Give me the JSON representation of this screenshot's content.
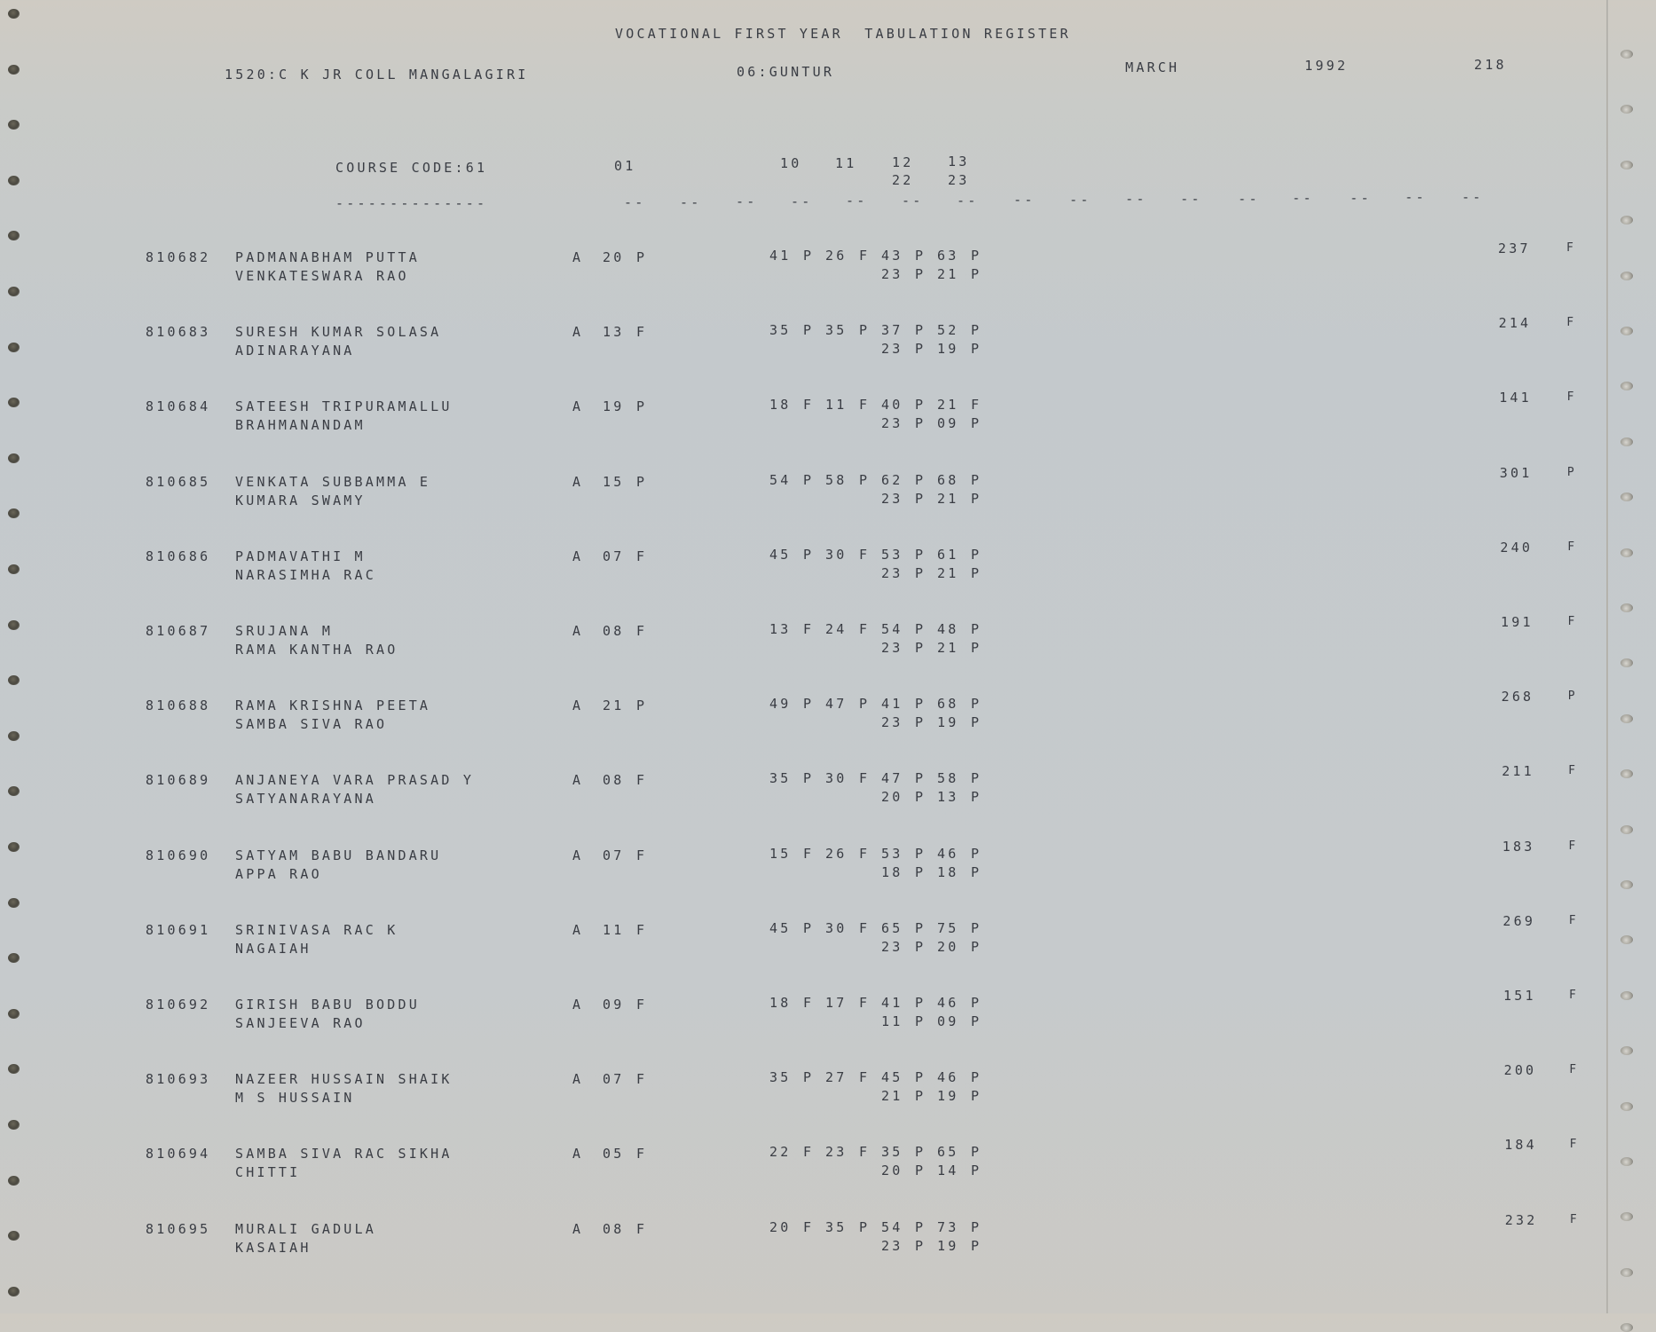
{
  "header": {
    "title": "VOCATIONAL FIRST YEAR  TABULATION REGISTER",
    "college": "1520:C K JR COLL MANGALAGIRI",
    "district": "06:GUNTUR",
    "month": "MARCH",
    "year": "1992",
    "page": "218"
  },
  "columns": {
    "course_code": "COURSE CODE:61",
    "course_underline": "--------------",
    "subjects_line1": [
      "01",
      "10",
      "11",
      "12",
      "13"
    ],
    "subjects_line2": [
      "22",
      "23"
    ],
    "dash_group": "--",
    "dash_group_count": 16
  },
  "rows": [
    {
      "id": "810682",
      "name1": "PADMANABHAM PUTTA",
      "name2": "VENKATESWARA RAO",
      "part": "A",
      "s01": [
        "20",
        "P"
      ],
      "s10": [
        "41",
        "P"
      ],
      "s11": [
        "26",
        "F"
      ],
      "s12": [
        "43",
        "P"
      ],
      "s13": [
        "63",
        "P"
      ],
      "s22": [
        "23",
        "P"
      ],
      "s23": [
        "21",
        "P"
      ],
      "total": "237",
      "result": "F"
    },
    {
      "id": "810683",
      "name1": "SURESH KUMAR SOLASA",
      "name2": "ADINARAYANA",
      "part": "A",
      "s01": [
        "13",
        "F"
      ],
      "s10": [
        "35",
        "P"
      ],
      "s11": [
        "35",
        "P"
      ],
      "s12": [
        "37",
        "P"
      ],
      "s13": [
        "52",
        "P"
      ],
      "s22": [
        "23",
        "P"
      ],
      "s23": [
        "19",
        "P"
      ],
      "total": "214",
      "result": "F"
    },
    {
      "id": "810684",
      "name1": "SATEESH TRIPURAMALLU",
      "name2": "BRAHMANANDAM",
      "part": "A",
      "s01": [
        "19",
        "P"
      ],
      "s10": [
        "18",
        "F"
      ],
      "s11": [
        "11",
        "F"
      ],
      "s12": [
        "40",
        "P"
      ],
      "s13": [
        "21",
        "F"
      ],
      "s22": [
        "23",
        "P"
      ],
      "s23": [
        "09",
        "P"
      ],
      "total": "141",
      "result": "F"
    },
    {
      "id": "810685",
      "name1": "VENKATA SUBBAMMA E",
      "name2": "KUMARA SWAMY",
      "part": "A",
      "s01": [
        "15",
        "P"
      ],
      "s10": [
        "54",
        "P"
      ],
      "s11": [
        "58",
        "P"
      ],
      "s12": [
        "62",
        "P"
      ],
      "s13": [
        "68",
        "P"
      ],
      "s22": [
        "23",
        "P"
      ],
      "s23": [
        "21",
        "P"
      ],
      "total": "301",
      "result": "P"
    },
    {
      "id": "810686",
      "name1": "PADMAVATHI M",
      "name2": "NARASIMHA RAC",
      "part": "A",
      "s01": [
        "07",
        "F"
      ],
      "s10": [
        "45",
        "P"
      ],
      "s11": [
        "30",
        "F"
      ],
      "s12": [
        "53",
        "P"
      ],
      "s13": [
        "61",
        "P"
      ],
      "s22": [
        "23",
        "P"
      ],
      "s23": [
        "21",
        "P"
      ],
      "total": "240",
      "result": "F"
    },
    {
      "id": "810687",
      "name1": "SRUJANA M",
      "name2": "RAMA KANTHA RAO",
      "part": "A",
      "s01": [
        "08",
        "F"
      ],
      "s10": [
        "13",
        "F"
      ],
      "s11": [
        "24",
        "F"
      ],
      "s12": [
        "54",
        "P"
      ],
      "s13": [
        "48",
        "P"
      ],
      "s22": [
        "23",
        "P"
      ],
      "s23": [
        "21",
        "P"
      ],
      "total": "191",
      "result": "F"
    },
    {
      "id": "810688",
      "name1": "RAMA KRISHNA PEETA",
      "name2": "SAMBA SIVA RAO",
      "part": "A",
      "s01": [
        "21",
        "P"
      ],
      "s10": [
        "49",
        "P"
      ],
      "s11": [
        "47",
        "P"
      ],
      "s12": [
        "41",
        "P"
      ],
      "s13": [
        "68",
        "P"
      ],
      "s22": [
        "23",
        "P"
      ],
      "s23": [
        "19",
        "P"
      ],
      "total": "268",
      "result": "P"
    },
    {
      "id": "810689",
      "name1": "ANJANEYA VARA PRASAD Y",
      "name2": "SATYANARAYANA",
      "part": "A",
      "s01": [
        "08",
        "F"
      ],
      "s10": [
        "35",
        "P"
      ],
      "s11": [
        "30",
        "F"
      ],
      "s12": [
        "47",
        "P"
      ],
      "s13": [
        "58",
        "P"
      ],
      "s22": [
        "20",
        "P"
      ],
      "s23": [
        "13",
        "P"
      ],
      "total": "211",
      "result": "F"
    },
    {
      "id": "810690",
      "name1": "SATYAM BABU BANDARU",
      "name2": "APPA RAO",
      "part": "A",
      "s01": [
        "07",
        "F"
      ],
      "s10": [
        "15",
        "F"
      ],
      "s11": [
        "26",
        "F"
      ],
      "s12": [
        "53",
        "P"
      ],
      "s13": [
        "46",
        "P"
      ],
      "s22": [
        "18",
        "P"
      ],
      "s23": [
        "18",
        "P"
      ],
      "total": "183",
      "result": "F"
    },
    {
      "id": "810691",
      "name1": "SRINIVASA RAC K",
      "name2": "NAGAIAH",
      "part": "A",
      "s01": [
        "11",
        "F"
      ],
      "s10": [
        "45",
        "P"
      ],
      "s11": [
        "30",
        "F"
      ],
      "s12": [
        "65",
        "P"
      ],
      "s13": [
        "75",
        "P"
      ],
      "s22": [
        "23",
        "P"
      ],
      "s23": [
        "20",
        "P"
      ],
      "total": "269",
      "result": "F"
    },
    {
      "id": "810692",
      "name1": "GIRISH BABU BODDU",
      "name2": "SANJEEVA RAO",
      "part": "A",
      "s01": [
        "09",
        "F"
      ],
      "s10": [
        "18",
        "F"
      ],
      "s11": [
        "17",
        "F"
      ],
      "s12": [
        "41",
        "P"
      ],
      "s13": [
        "46",
        "P"
      ],
      "s22": [
        "11",
        "P"
      ],
      "s23": [
        "09",
        "P"
      ],
      "total": "151",
      "result": "F"
    },
    {
      "id": "810693",
      "name1": "NAZEER HUSSAIN SHAIK",
      "name2": "M S HUSSAIN",
      "part": "A",
      "s01": [
        "07",
        "F"
      ],
      "s10": [
        "35",
        "P"
      ],
      "s11": [
        "27",
        "F"
      ],
      "s12": [
        "45",
        "P"
      ],
      "s13": [
        "46",
        "P"
      ],
      "s22": [
        "21",
        "P"
      ],
      "s23": [
        "19",
        "P"
      ],
      "total": "200",
      "result": "F"
    },
    {
      "id": "810694",
      "name1": "SAMBA SIVA RAC SIKHA",
      "name2": "CHITTI",
      "part": "A",
      "s01": [
        "05",
        "F"
      ],
      "s10": [
        "22",
        "F"
      ],
      "s11": [
        "23",
        "F"
      ],
      "s12": [
        "35",
        "P"
      ],
      "s13": [
        "65",
        "P"
      ],
      "s22": [
        "20",
        "P"
      ],
      "s23": [
        "14",
        "P"
      ],
      "total": "184",
      "result": "F"
    },
    {
      "id": "810695",
      "name1": "MURALI GADULA",
      "name2": "KASAIAH",
      "part": "A",
      "s01": [
        "08",
        "F"
      ],
      "s10": [
        "20",
        "F"
      ],
      "s11": [
        "35",
        "P"
      ],
      "s12": [
        "54",
        "P"
      ],
      "s13": [
        "73",
        "P"
      ],
      "s22": [
        "23",
        "P"
      ],
      "s23": [
        "19",
        "P"
      ],
      "total": "232",
      "result": "F"
    }
  ],
  "colors": {
    "ink": "#3a3d44",
    "paper": "#c6cacc"
  }
}
